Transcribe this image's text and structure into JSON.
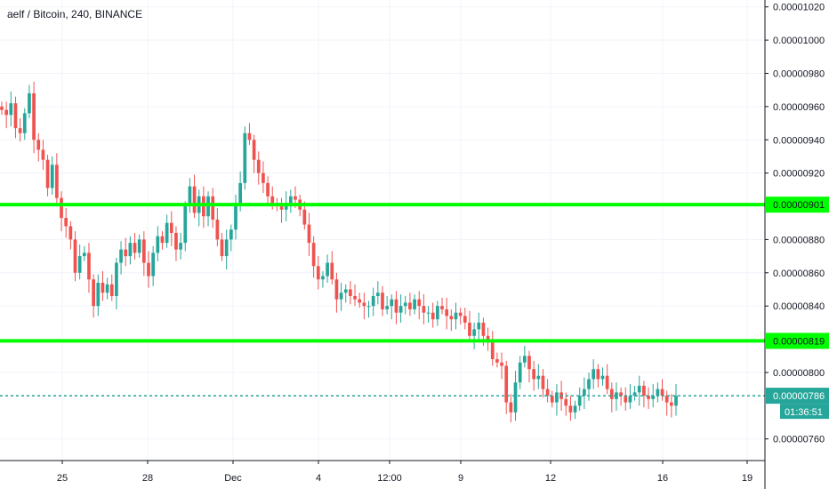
{
  "title": "aelf / Bitcoin, 240, BINANCE",
  "chart_data": {
    "type": "candlestick",
    "y_ticks": [
      "0.00001020",
      "0.00001000",
      "0.00000980",
      "0.00000960",
      "0.00000940",
      "0.00000920",
      "0.00000880",
      "0.00000860",
      "0.00000840",
      "0.00000800",
      "0.00000760"
    ],
    "y_tick_values": [
      1020,
      1000,
      980,
      960,
      940,
      920,
      880,
      860,
      840,
      800,
      760
    ],
    "x_ticks": [
      "25",
      "28",
      "Dec",
      "4",
      "12:00",
      "9",
      "12",
      "16",
      "19"
    ],
    "ylim": [
      747,
      1022
    ],
    "horizontal_levels": [
      {
        "value": 901,
        "label": "0.00000901",
        "color": "#00ff00"
      },
      {
        "value": 819,
        "label": "0.00000819",
        "color": "#00ff00"
      }
    ],
    "current_price": {
      "value": 786,
      "label": "0.00000786",
      "color": "#26a69a"
    },
    "countdown": "01:36:51",
    "up_color": "#26a69a",
    "down_color": "#ef5350",
    "closes": [
      958,
      955,
      962,
      947,
      944,
      956,
      968,
      940,
      934,
      928,
      911,
      925,
      905,
      893,
      888,
      880,
      860,
      870,
      872,
      856,
      840,
      854,
      848,
      853,
      846,
      866,
      874,
      870,
      878,
      872,
      880,
      866,
      858,
      872,
      882,
      878,
      890,
      884,
      874,
      878,
      900,
      912,
      896,
      906,
      894,
      906,
      892,
      880,
      870,
      880,
      886,
      902,
      914,
      944,
      940,
      928,
      920,
      914,
      906,
      902,
      900,
      898,
      902,
      906,
      904,
      898,
      889,
      878,
      864,
      856,
      858,
      866,
      856,
      844,
      848,
      850,
      846,
      844,
      842,
      840,
      840,
      846,
      848,
      838,
      840,
      844,
      836,
      840,
      842,
      838,
      844,
      840,
      836,
      836,
      832,
      840,
      838,
      834,
      832,
      836,
      834,
      830,
      822,
      826,
      830,
      822,
      818,
      808,
      806,
      804,
      782,
      776,
      794,
      806,
      810,
      802,
      796,
      798,
      790,
      786,
      782,
      788,
      784,
      780,
      776,
      780,
      786,
      790,
      796,
      802,
      796,
      798,
      790,
      784,
      788,
      786,
      782,
      786,
      788,
      792,
      786,
      784,
      786,
      790,
      786,
      782,
      780,
      786
    ]
  }
}
